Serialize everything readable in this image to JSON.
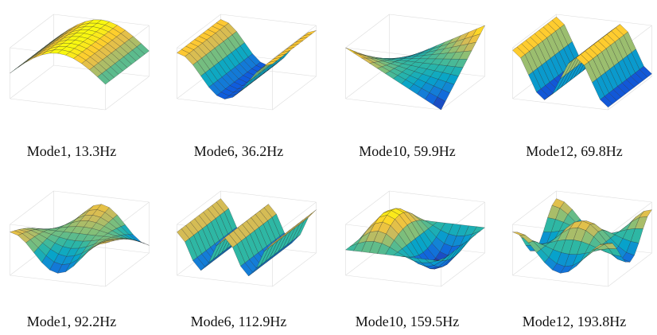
{
  "panels": [
    {
      "caption": "Mode1, 13.3Hz"
    },
    {
      "caption": "Mode6, 36.2Hz"
    },
    {
      "caption": "Mode10, 59.9Hz"
    },
    {
      "caption": "Mode12, 69.8Hz"
    },
    {
      "caption": "Mode1, 92.2Hz"
    },
    {
      "caption": "Mode6, 112.9Hz"
    },
    {
      "caption": "Mode10, 159.5Hz"
    },
    {
      "caption": "Mode12, 193.8Hz"
    }
  ]
}
